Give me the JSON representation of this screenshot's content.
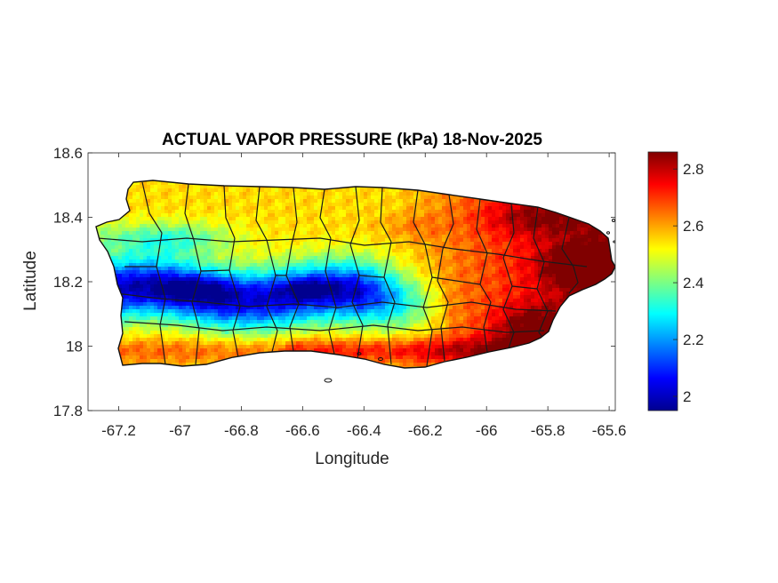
{
  "chart_data": {
    "type": "heatmap",
    "title": "ACTUAL VAPOR PRESSURE (kPa) 18-Nov-2025",
    "xlabel": "Longitude",
    "ylabel": "Latitude",
    "xlim": [
      -67.3,
      -65.58
    ],
    "ylim": [
      17.8,
      18.6
    ],
    "xticks": [
      -67.2,
      -67,
      -66.8,
      -66.6,
      -66.4,
      -66.2,
      -66,
      -65.8,
      -65.6
    ],
    "xtick_labels": [
      "-67.2",
      "-67",
      "-66.8",
      "-66.6",
      "-66.4",
      "-66.2",
      "-66",
      "-65.8",
      "-65.6"
    ],
    "yticks": [
      17.8,
      18,
      18.2,
      18.4,
      18.6
    ],
    "ytick_labels": [
      "17.8",
      "18",
      "18.2",
      "18.4",
      "18.6"
    ],
    "colorbar": {
      "colormap": "jet",
      "min": 1.95,
      "max": 2.86,
      "ticks": [
        2,
        2.2,
        2.4,
        2.6,
        2.8
      ],
      "tick_labels": [
        "2",
        "2.2",
        "2.4",
        "2.6",
        "2.8"
      ]
    },
    "grid": false
  }
}
